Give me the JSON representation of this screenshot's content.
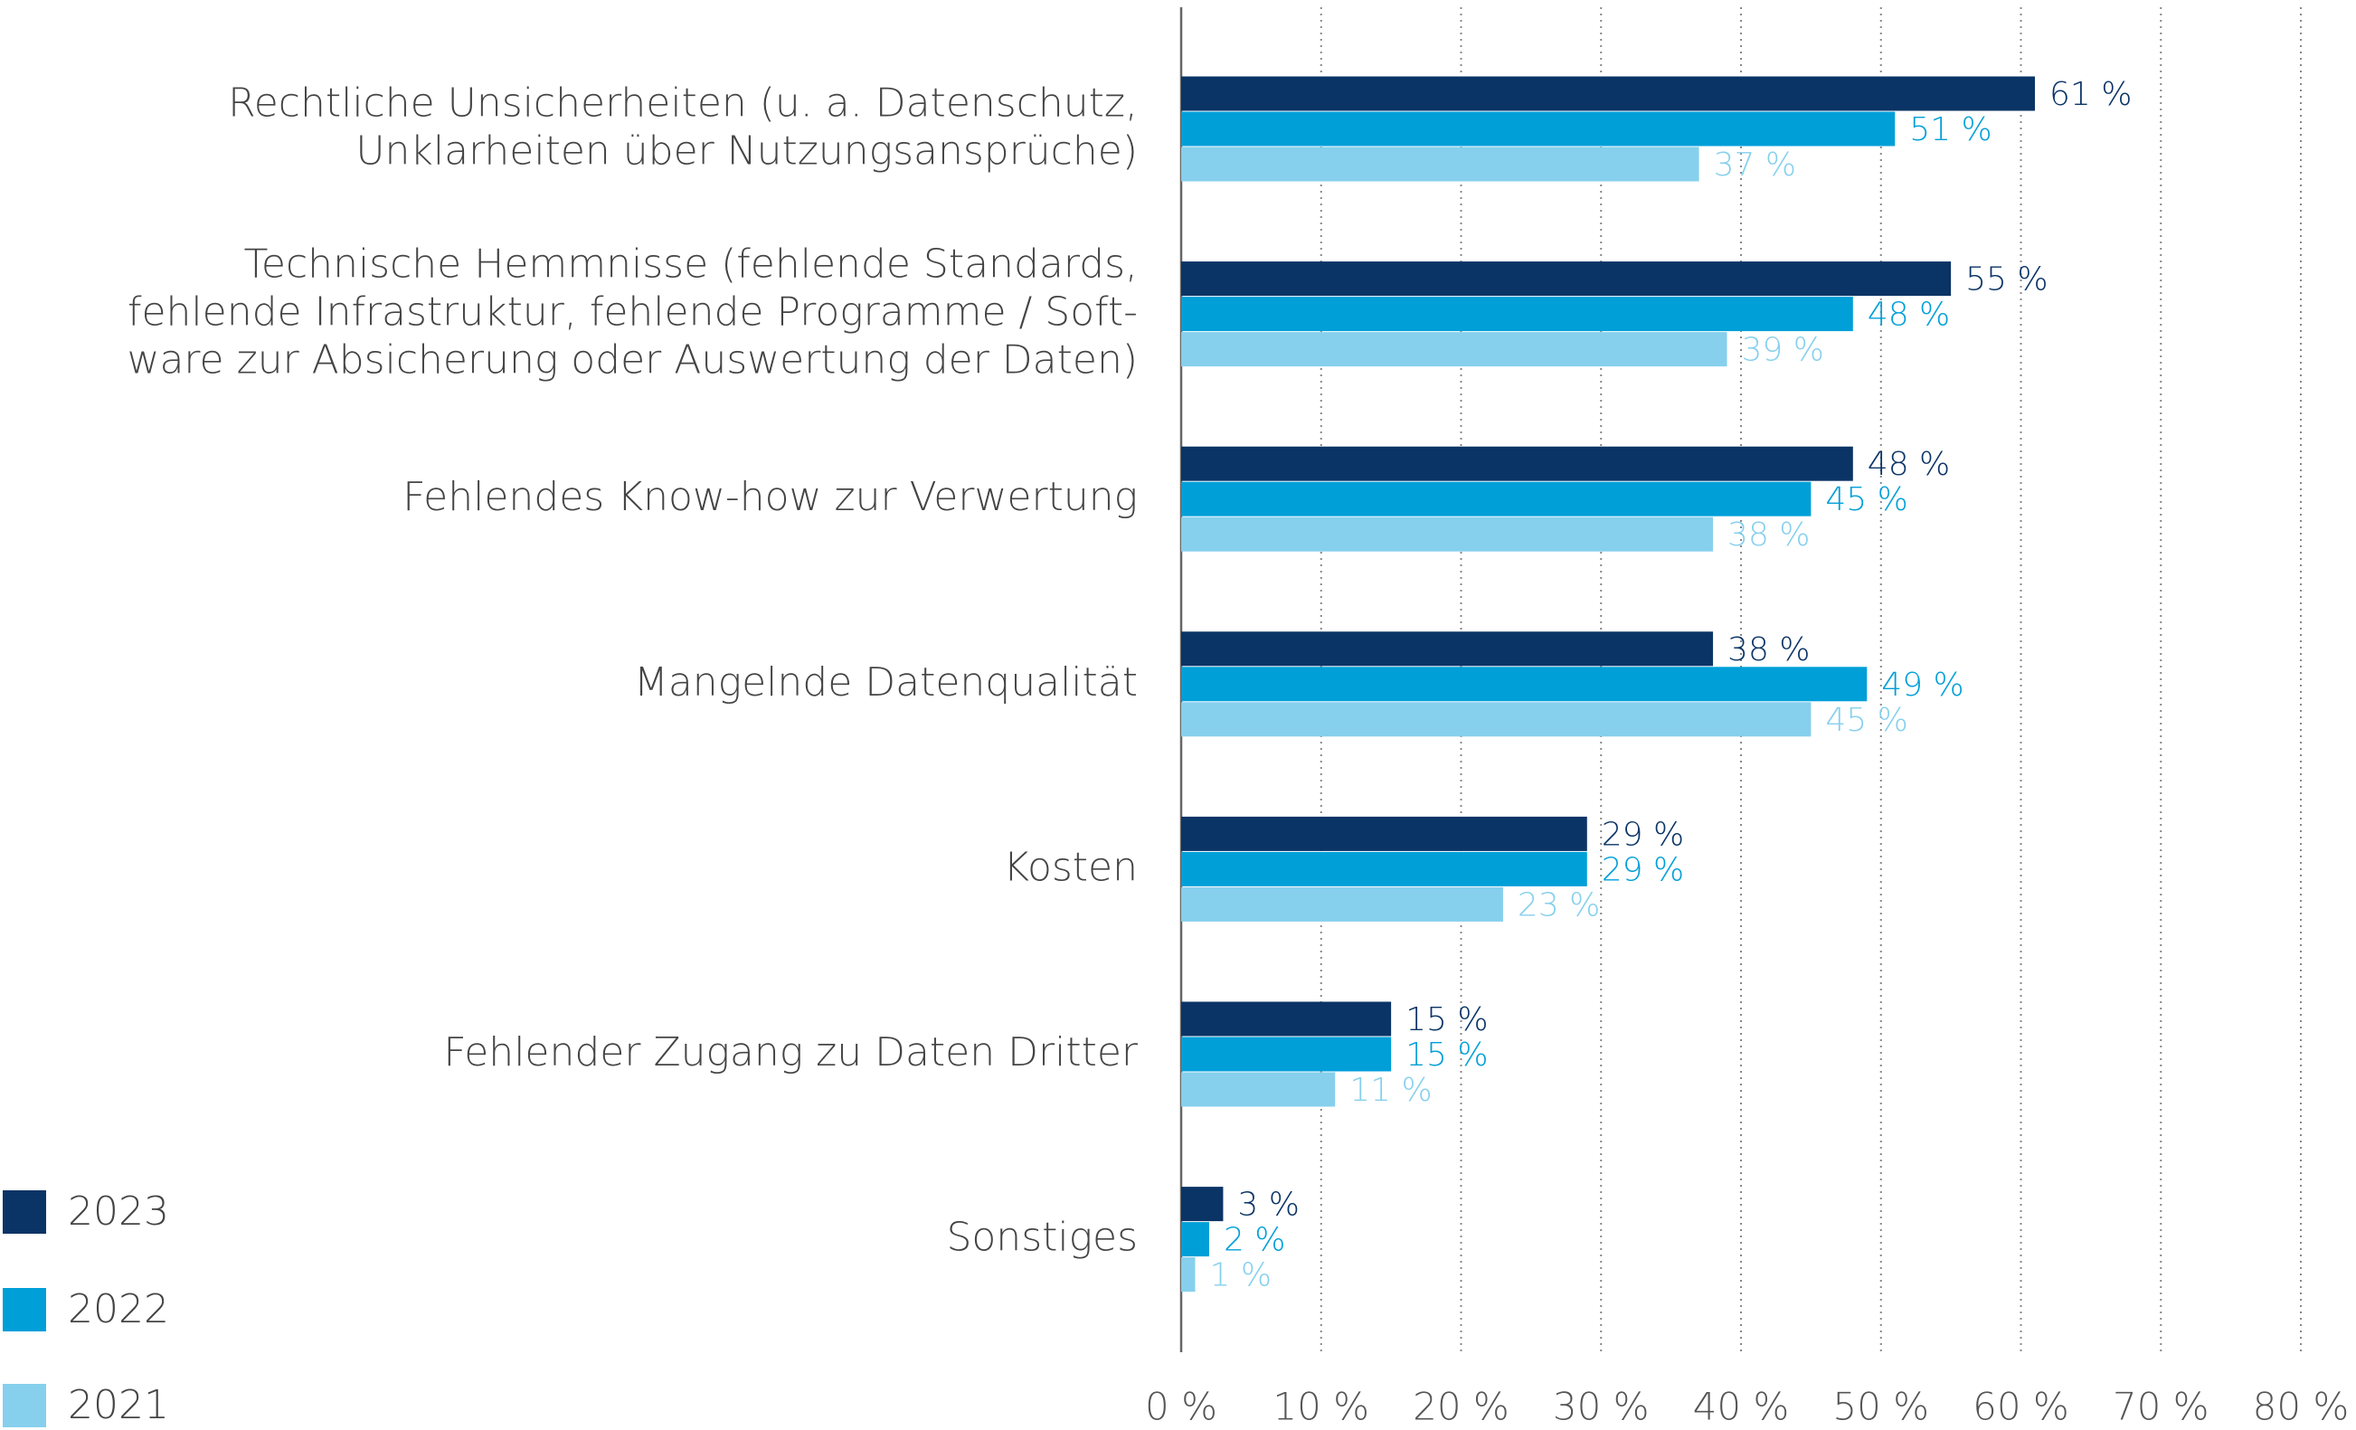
{
  "chart_data": {
    "type": "barh",
    "categories": [
      [
        "Rechtliche Unsicherheiten (u. a. Datenschutz,",
        "Unklarheiten über Nutzungsansprüche)"
      ],
      [
        "Technische Hemmnisse (fehlende Standards,",
        "fehlende Infrastruktur, fehlende Programme / Soft-",
        "ware zur Absicherung oder Auswertung der Daten)"
      ],
      [
        "Fehlendes Know-how zur Verwertung"
      ],
      [
        "Mangelnde Datenqualität"
      ],
      [
        "Kosten"
      ],
      [
        "Fehlender Zugang zu Daten Dritter"
      ],
      [
        "Sonstiges"
      ]
    ],
    "series": [
      {
        "name": "2023",
        "color": "#0b3466",
        "values": [
          61,
          55,
          48,
          38,
          29,
          15,
          3
        ],
        "value_labels": [
          "61 %",
          "55 %",
          "48 %",
          "38 %",
          "29 %",
          "15 %",
          "3 %"
        ]
      },
      {
        "name": "2022",
        "color": "#009fd8",
        "values": [
          51,
          48,
          45,
          49,
          29,
          15,
          2
        ],
        "value_labels": [
          "51 %",
          "48 %",
          "45 %",
          "49 %",
          "29 %",
          "15 %",
          "2 %"
        ]
      },
      {
        "name": "2021",
        "color": "#86d0ed",
        "values": [
          37,
          39,
          38,
          45,
          23,
          11,
          1
        ],
        "value_labels": [
          "37 %",
          "39 %",
          "38 %",
          "45 %",
          "23 %",
          "11 %",
          "1 %"
        ]
      }
    ],
    "xlim": [
      0,
      80
    ],
    "xticks": [
      {
        "value": 0,
        "label": "0 %"
      },
      {
        "value": 10,
        "label": "10 %"
      },
      {
        "value": 20,
        "label": "20 %"
      },
      {
        "value": 30,
        "label": "30 %"
      },
      {
        "value": 40,
        "label": "40 %"
      },
      {
        "value": 50,
        "label": "50 %"
      },
      {
        "value": 60,
        "label": "60 %"
      },
      {
        "value": 70,
        "label": "70 %"
      },
      {
        "value": 80,
        "label": "80 %"
      }
    ],
    "grid": true,
    "legend": "bottom-left"
  }
}
